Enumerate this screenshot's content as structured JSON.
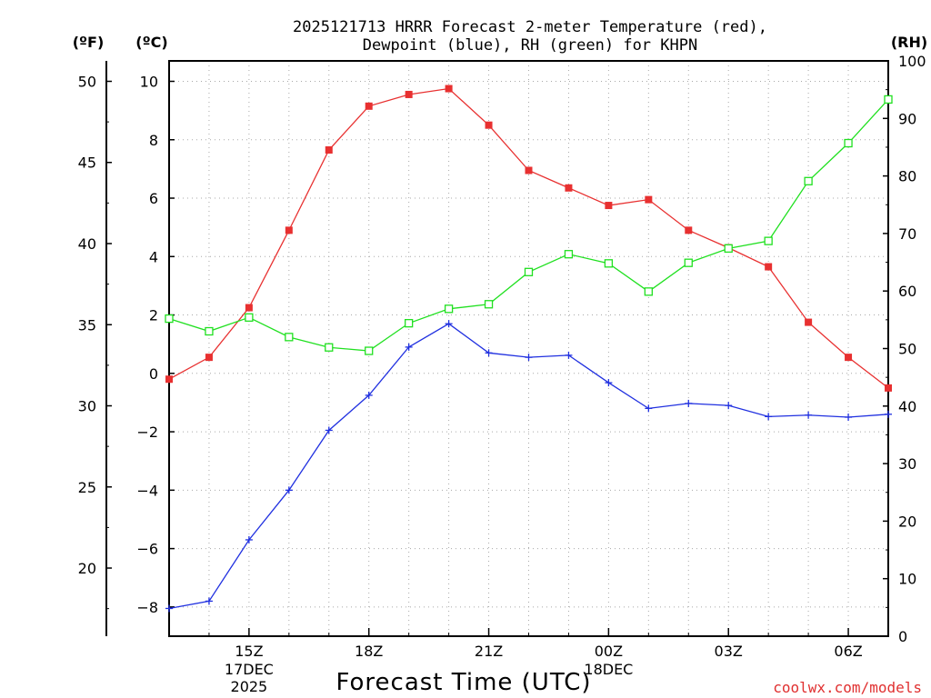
{
  "chart_data": {
    "type": "line",
    "title_line1": "2025121713 HRRR Forecast 2-meter Temperature (red),",
    "title_line2": "Dewpoint (blue), RH (green) for KHPN",
    "left_outer_unit": "(ºF)",
    "left_inner_unit": "(ºC)",
    "right_unit": "(RH)",
    "xlabel": "Forecast Time (UTC)",
    "credit": "coolwx.com/models",
    "x_hours": [
      13,
      14,
      15,
      16,
      17,
      18,
      19,
      20,
      21,
      22,
      23,
      24,
      25,
      26,
      27,
      28,
      29,
      30,
      31
    ],
    "xlim": [
      13,
      31
    ],
    "x_ticks": [
      {
        "hour": 15,
        "label": "15Z",
        "sub1": "17DEC",
        "sub2": "2025"
      },
      {
        "hour": 18,
        "label": "18Z",
        "sub1": "",
        "sub2": ""
      },
      {
        "hour": 21,
        "label": "21Z",
        "sub1": "",
        "sub2": ""
      },
      {
        "hour": 24,
        "label": "00Z",
        "sub1": "18DEC",
        "sub2": ""
      },
      {
        "hour": 27,
        "label": "03Z",
        "sub1": "",
        "sub2": ""
      },
      {
        "hour": 30,
        "label": "06Z",
        "sub1": "",
        "sub2": ""
      }
    ],
    "celsius_axis": {
      "ylim": [
        -9,
        10.7
      ],
      "ticks": [
        -8,
        -6,
        -4,
        -2,
        0,
        2,
        4,
        6,
        8,
        10
      ]
    },
    "fahrenheit_axis": {
      "ticks": [
        20,
        25,
        30,
        35,
        40,
        45,
        50
      ]
    },
    "rh_axis": {
      "ylim": [
        0,
        100
      ],
      "ticks": [
        0,
        10,
        20,
        30,
        40,
        50,
        60,
        70,
        80,
        90,
        100
      ]
    },
    "series": [
      {
        "name": "2-meter Temperature",
        "color": "#e83030",
        "marker": "filled-square",
        "axis": "celsius",
        "values": [
          -0.2,
          0.55,
          2.25,
          4.9,
          7.65,
          9.15,
          9.55,
          9.75,
          8.5,
          6.95,
          6.35,
          5.75,
          5.95,
          4.9,
          4.3,
          3.65,
          1.75,
          0.55,
          -0.5
        ]
      },
      {
        "name": "Dewpoint",
        "color": "#2030e0",
        "marker": "plus",
        "axis": "celsius",
        "values": [
          -8.05,
          -7.8,
          -5.7,
          -4.0,
          -1.95,
          -0.75,
          0.9,
          1.7,
          0.7,
          0.55,
          0.62,
          -0.32,
          -1.2,
          -1.03,
          -1.1,
          -1.48,
          -1.43,
          -1.5,
          -1.4
        ]
      },
      {
        "name": "RH",
        "color": "#20e020",
        "marker": "open-square",
        "axis": "rh",
        "values": [
          55.2,
          53.0,
          55.4,
          52.0,
          50.2,
          49.6,
          54.4,
          56.9,
          57.7,
          63.3,
          66.4,
          64.8,
          59.9,
          64.9,
          67.4,
          68.7,
          79.1,
          85.7,
          93.3
        ]
      }
    ]
  }
}
